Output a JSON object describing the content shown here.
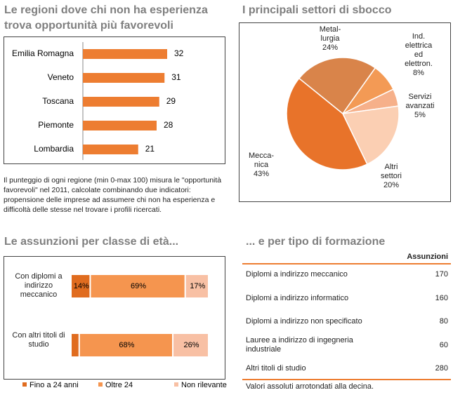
{
  "chart_data": [
    {
      "type": "hbar",
      "title": "Le regioni dove chi non ha esperienza trova opportunità più favorevoli",
      "categories": [
        "Emilia Romagna",
        "Veneto",
        "Toscana",
        "Piemonte",
        "Lombardia"
      ],
      "values": [
        32,
        31,
        29,
        28,
        21
      ],
      "color": "#ed7d31",
      "note": "Il punteggio di ogni regione (min 0-max 100) misura le \"opportunità favorevoli\" nel 2011, calcolate combinando due indicatori: propensione delle imprese ad assumere chi non ha esperienza e difficoltà delle stesse nel trovare i profili ricercati."
    },
    {
      "type": "pie",
      "title": "I principali settori di sbocco",
      "categories": [
        "Metal-\nlurgia",
        "Ind.\nelettrica\ned\nelettron.",
        "Servizi\navanzati",
        "Altri\nsettori",
        "Mecca-\nnica"
      ],
      "values": [
        24,
        8,
        5,
        20,
        43
      ],
      "value_labels": [
        "24%",
        "8%",
        "5%",
        "20%",
        "43%"
      ],
      "colors": [
        "#d9844a",
        "#f39a55",
        "#f6b08a",
        "#fbcfb3",
        "#e8732a"
      ]
    },
    {
      "type": "stacked-hbar",
      "title": "Le assunzioni per classe di età...",
      "categories": [
        "Con diplomi a\nindirizzo\nmeccanico",
        "Con altri titoli di\nstudio"
      ],
      "series": [
        {
          "name": "Fino a 24 anni",
          "color": "#e06c1f",
          "values": [
            14,
            6
          ],
          "value_labels": [
            "14%",
            null
          ]
        },
        {
          "name": "Oltre 24",
          "color": "#f5954f",
          "values": [
            69,
            68
          ],
          "value_labels": [
            "69%",
            "68%"
          ]
        },
        {
          "name": "Non rilevante",
          "color": "#f8c0a4",
          "values": [
            17,
            26
          ],
          "value_labels": [
            "17%",
            "26%"
          ]
        }
      ]
    }
  ],
  "table": {
    "title": "... e per tipo di formazione",
    "header": "Assunzioni",
    "rows": [
      [
        "Diplomi  a indirizzo meccanico",
        170
      ],
      [
        "Diplomi  a indirizzo informatico",
        160
      ],
      [
        "Diplomi  a indirizzo non specificato",
        80
      ],
      [
        "Lauree  a indirizzo di ingegneria\nindustriale",
        60
      ],
      [
        "Altri titoli di studio",
        280
      ]
    ],
    "note": "Valori assoluti arrotondati alla decina."
  }
}
